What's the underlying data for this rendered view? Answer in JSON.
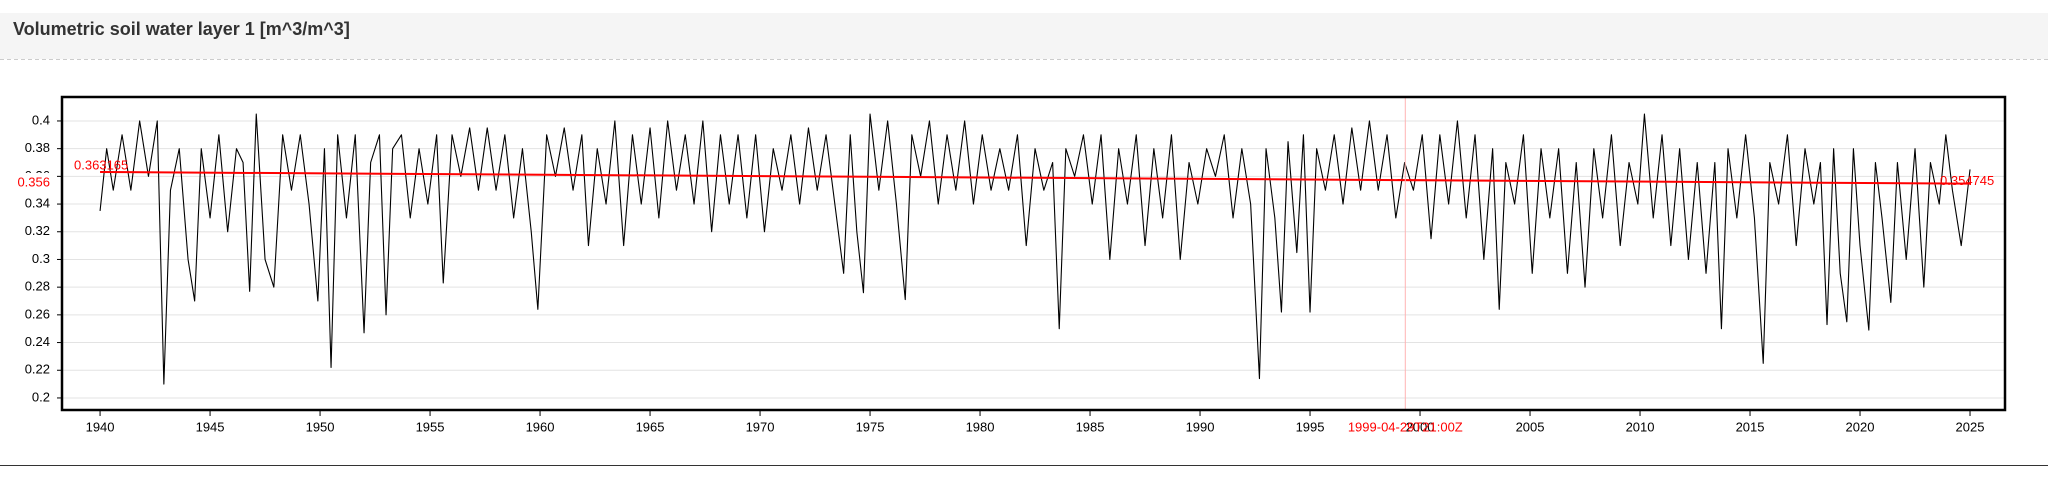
{
  "chart_data": {
    "type": "line",
    "title": "Volumetric soil water layer 1 [m^3/m^3]",
    "color": "#000000",
    "grid": true,
    "xlim": [
      1938.27,
      2026.59
    ],
    "ylim": [
      0.1913,
      0.4173
    ],
    "xticks": [
      1940,
      1945,
      1950,
      1955,
      1960,
      1965,
      1970,
      1975,
      1980,
      1985,
      1990,
      1995,
      2000,
      2005,
      2010,
      2015,
      2020,
      2025
    ],
    "yticks": [
      0.2,
      0.22,
      0.24,
      0.26,
      0.28,
      0.3,
      0.32,
      0.34,
      0.36,
      0.38,
      0.4
    ],
    "x": [
      1940.0,
      1940.3,
      1940.6,
      1941.0,
      1941.4,
      1941.8,
      1942.2,
      1942.6,
      1942.9,
      1943.2,
      1943.6,
      1944.0,
      1944.3,
      1944.6,
      1945.0,
      1945.4,
      1945.8,
      1946.2,
      1946.5,
      1946.8,
      1947.1,
      1947.5,
      1947.9,
      1948.3,
      1948.7,
      1949.1,
      1949.5,
      1949.9,
      1950.2,
      1950.5,
      1950.8,
      1951.2,
      1951.6,
      1952.0,
      1952.3,
      1952.7,
      1953.0,
      1953.3,
      1953.7,
      1954.1,
      1954.5,
      1954.9,
      1955.3,
      1955.6,
      1956.0,
      1956.4,
      1956.8,
      1957.2,
      1957.6,
      1958.0,
      1958.4,
      1958.8,
      1959.2,
      1959.6,
      1959.9,
      1960.3,
      1960.7,
      1961.1,
      1961.5,
      1961.9,
      1962.2,
      1962.6,
      1963.0,
      1963.4,
      1963.8,
      1964.2,
      1964.6,
      1965.0,
      1965.4,
      1965.8,
      1966.2,
      1966.6,
      1967.0,
      1967.4,
      1967.8,
      1968.2,
      1968.6,
      1969.0,
      1969.4,
      1969.8,
      1970.2,
      1970.6,
      1971.0,
      1971.4,
      1971.8,
      1972.2,
      1972.6,
      1973.0,
      1973.4,
      1973.8,
      1974.1,
      1974.4,
      1974.7,
      1975.0,
      1975.4,
      1975.8,
      1976.2,
      1976.6,
      1976.9,
      1977.3,
      1977.7,
      1978.1,
      1978.5,
      1978.9,
      1979.3,
      1979.7,
      1980.1,
      1980.5,
      1980.9,
      1981.3,
      1981.7,
      1982.1,
      1982.5,
      1982.9,
      1983.3,
      1983.6,
      1983.9,
      1984.3,
      1984.7,
      1985.1,
      1985.5,
      1985.9,
      1986.3,
      1986.7,
      1987.1,
      1987.5,
      1987.9,
      1988.3,
      1988.7,
      1989.1,
      1989.5,
      1989.9,
      1990.3,
      1990.7,
      1991.1,
      1991.5,
      1991.9,
      1992.3,
      1992.7,
      1993.0,
      1993.4,
      1993.7,
      1994.0,
      1994.4,
      1994.7,
      1995.0,
      1995.3,
      1995.7,
      1996.1,
      1996.5,
      1996.9,
      1997.3,
      1997.7,
      1998.1,
      1998.5,
      1998.9,
      1999.3,
      1999.7,
      2000.1,
      2000.5,
      2000.9,
      2001.3,
      2001.7,
      2002.1,
      2002.5,
      2002.9,
      2003.3,
      2003.6,
      2003.9,
      2004.3,
      2004.7,
      2005.1,
      2005.5,
      2005.9,
      2006.3,
      2006.7,
      2007.1,
      2007.5,
      2007.9,
      2008.3,
      2008.7,
      2009.1,
      2009.5,
      2009.9,
      2010.2,
      2010.6,
      2011.0,
      2011.4,
      2011.8,
      2012.2,
      2012.6,
      2013.0,
      2013.4,
      2013.7,
      2014.0,
      2014.4,
      2014.8,
      2015.2,
      2015.6,
      2015.9,
      2016.3,
      2016.7,
      2017.1,
      2017.5,
      2017.9,
      2018.2,
      2018.5,
      2018.8,
      2019.1,
      2019.4,
      2019.7,
      2020.0,
      2020.4,
      2020.7,
      2021.0,
      2021.4,
      2021.7,
      2022.1,
      2022.5,
      2022.9,
      2023.2,
      2023.6,
      2023.9,
      2024.2,
      2024.6,
      2025.0
    ],
    "values": [
      0.335,
      0.38,
      0.35,
      0.39,
      0.35,
      0.4,
      0.36,
      0.4,
      0.21,
      0.35,
      0.38,
      0.3,
      0.27,
      0.38,
      0.33,
      0.39,
      0.32,
      0.38,
      0.37,
      0.277,
      0.405,
      0.3,
      0.28,
      0.39,
      0.35,
      0.39,
      0.34,
      0.27,
      0.38,
      0.222,
      0.39,
      0.33,
      0.39,
      0.247,
      0.37,
      0.39,
      0.26,
      0.38,
      0.39,
      0.33,
      0.38,
      0.34,
      0.39,
      0.283,
      0.39,
      0.36,
      0.395,
      0.35,
      0.395,
      0.35,
      0.39,
      0.33,
      0.38,
      0.32,
      0.264,
      0.39,
      0.36,
      0.395,
      0.35,
      0.39,
      0.31,
      0.38,
      0.34,
      0.4,
      0.31,
      0.39,
      0.34,
      0.395,
      0.33,
      0.4,
      0.35,
      0.39,
      0.34,
      0.4,
      0.32,
      0.39,
      0.34,
      0.39,
      0.33,
      0.39,
      0.32,
      0.38,
      0.35,
      0.39,
      0.34,
      0.395,
      0.35,
      0.39,
      0.34,
      0.29,
      0.39,
      0.32,
      0.276,
      0.405,
      0.35,
      0.4,
      0.34,
      0.271,
      0.39,
      0.36,
      0.4,
      0.34,
      0.39,
      0.35,
      0.4,
      0.34,
      0.39,
      0.35,
      0.38,
      0.35,
      0.39,
      0.31,
      0.38,
      0.35,
      0.37,
      0.25,
      0.38,
      0.36,
      0.39,
      0.34,
      0.39,
      0.3,
      0.38,
      0.34,
      0.39,
      0.31,
      0.38,
      0.33,
      0.39,
      0.3,
      0.37,
      0.34,
      0.38,
      0.36,
      0.39,
      0.33,
      0.38,
      0.34,
      0.214,
      0.38,
      0.33,
      0.262,
      0.385,
      0.305,
      0.39,
      0.262,
      0.38,
      0.35,
      0.39,
      0.34,
      0.395,
      0.35,
      0.4,
      0.35,
      0.39,
      0.33,
      0.37,
      0.35,
      0.39,
      0.315,
      0.39,
      0.34,
      0.4,
      0.33,
      0.39,
      0.3,
      0.38,
      0.264,
      0.37,
      0.34,
      0.39,
      0.29,
      0.38,
      0.33,
      0.38,
      0.29,
      0.37,
      0.28,
      0.38,
      0.33,
      0.39,
      0.31,
      0.37,
      0.34,
      0.405,
      0.33,
      0.39,
      0.31,
      0.38,
      0.3,
      0.37,
      0.29,
      0.37,
      0.25,
      0.38,
      0.33,
      0.39,
      0.33,
      0.225,
      0.37,
      0.34,
      0.39,
      0.31,
      0.38,
      0.34,
      0.37,
      0.253,
      0.38,
      0.29,
      0.255,
      0.38,
      0.31,
      0.249,
      0.37,
      0.33,
      0.269,
      0.37,
      0.3,
      0.38,
      0.28,
      0.37,
      0.34,
      0.39,
      0.35,
      0.31,
      0.365
    ],
    "trend": {
      "color": "#ff0000",
      "x": [
        1940,
        2025
      ],
      "values": [
        0.363165,
        0.354745
      ]
    },
    "crosshair": {
      "color": "#ff0000",
      "x": {
        "value": 1999.33,
        "label": "1999-04-29T21:00Z"
      },
      "y": 0.356
    }
  }
}
